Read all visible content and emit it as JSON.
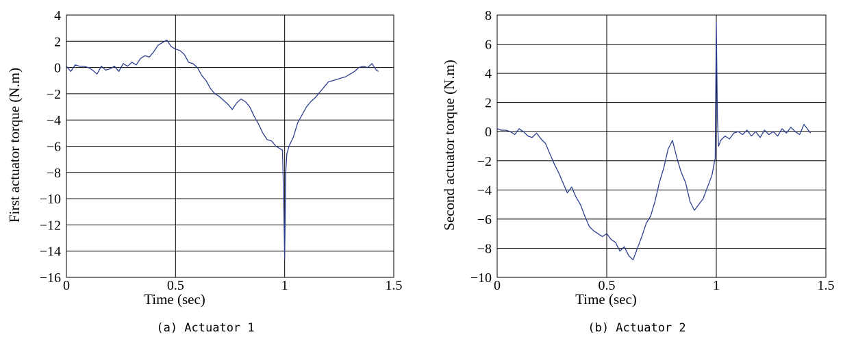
{
  "chart_data": [
    {
      "type": "line",
      "caption": "(a)  Actuator 1",
      "xlabel": "Time (sec)",
      "ylabel": "First actuator torque (N.m)",
      "xlim": [
        0,
        1.5
      ],
      "ylim": [
        -16,
        4
      ],
      "xticks": [
        0,
        0.5,
        1,
        1.5
      ],
      "xtick_labels": [
        "0",
        "0.5",
        "1",
        "1.5"
      ],
      "yticks": [
        -16,
        -14,
        -12,
        -10,
        -8,
        -6,
        -4,
        -2,
        0,
        2,
        4
      ],
      "ytick_labels": [
        "−16",
        "−14",
        "−12",
        "−10",
        "−8",
        "−6",
        "−4",
        "−2",
        "0",
        "2",
        "4"
      ],
      "grid": true,
      "line_color": "#2c3e8f",
      "series": [
        {
          "x": [
            0,
            0.02,
            0.04,
            0.06,
            0.08,
            0.1,
            0.12,
            0.14,
            0.16,
            0.18,
            0.2,
            0.22,
            0.24,
            0.26,
            0.28,
            0.3,
            0.32,
            0.34,
            0.36,
            0.38,
            0.4,
            0.42,
            0.44,
            0.46,
            0.48,
            0.5,
            0.52,
            0.54,
            0.56,
            0.58,
            0.6,
            0.62,
            0.64,
            0.66,
            0.68,
            0.7,
            0.72,
            0.74,
            0.76,
            0.78,
            0.8,
            0.82,
            0.84,
            0.86,
            0.88,
            0.9,
            0.92,
            0.94,
            0.96,
            0.98,
            0.99,
            0.995,
            1.0,
            1.005,
            1.01,
            1.02,
            1.04,
            1.06,
            1.08,
            1.1,
            1.12,
            1.14,
            1.16,
            1.18,
            1.2,
            1.22,
            1.24,
            1.26,
            1.28,
            1.3,
            1.32,
            1.34,
            1.36,
            1.38,
            1.4,
            1.42,
            1.43
          ],
          "y": [
            0.1,
            -0.3,
            0.2,
            0.1,
            0.1,
            0.0,
            -0.2,
            -0.5,
            0.1,
            -0.2,
            -0.1,
            0.1,
            -0.3,
            0.3,
            0.1,
            0.4,
            0.2,
            0.7,
            0.9,
            0.8,
            1.2,
            1.7,
            1.9,
            2.1,
            1.6,
            1.4,
            1.3,
            1.0,
            0.4,
            0.3,
            0.0,
            -0.6,
            -1.0,
            -1.6,
            -2.0,
            -2.2,
            -2.5,
            -2.8,
            -3.2,
            -2.7,
            -2.4,
            -2.6,
            -3.0,
            -3.7,
            -4.3,
            -5.0,
            -5.5,
            -5.6,
            -6.0,
            -6.2,
            -6.3,
            -9.5,
            -14.6,
            -8.0,
            -6.6,
            -6.0,
            -5.3,
            -4.2,
            -3.6,
            -3.0,
            -2.6,
            -2.3,
            -1.9,
            -1.5,
            -1.1,
            -1.0,
            -0.9,
            -0.8,
            -0.7,
            -0.5,
            -0.3,
            0.0,
            0.1,
            0.0,
            0.3,
            -0.2,
            -0.3
          ]
        }
      ]
    },
    {
      "type": "line",
      "caption": "(b)  Actuator 2",
      "xlabel": "Time (sec)",
      "ylabel": "Second actuator torque (N.m)",
      "xlim": [
        0,
        1.5
      ],
      "ylim": [
        -10,
        8
      ],
      "xticks": [
        0,
        0.5,
        1,
        1.5
      ],
      "xtick_labels": [
        "0",
        "0.5",
        "1",
        "1.5"
      ],
      "yticks": [
        -10,
        -8,
        -6,
        -4,
        -2,
        0,
        2,
        4,
        6,
        8
      ],
      "ytick_labels": [
        "−10",
        "−8",
        "−6",
        "−4",
        "−2",
        "0",
        "2",
        "4",
        "6",
        "8"
      ],
      "grid": true,
      "line_color": "#2c3e8f",
      "series": [
        {
          "x": [
            0,
            0.02,
            0.04,
            0.06,
            0.08,
            0.1,
            0.12,
            0.14,
            0.16,
            0.18,
            0.2,
            0.22,
            0.24,
            0.26,
            0.28,
            0.3,
            0.32,
            0.34,
            0.36,
            0.38,
            0.4,
            0.42,
            0.44,
            0.46,
            0.48,
            0.5,
            0.52,
            0.54,
            0.56,
            0.58,
            0.6,
            0.62,
            0.64,
            0.66,
            0.68,
            0.7,
            0.72,
            0.74,
            0.76,
            0.78,
            0.8,
            0.82,
            0.84,
            0.86,
            0.88,
            0.9,
            0.92,
            0.94,
            0.96,
            0.98,
            0.99,
            0.995,
            1.0,
            1.005,
            1.01,
            1.02,
            1.04,
            1.06,
            1.08,
            1.1,
            1.12,
            1.14,
            1.16,
            1.18,
            1.2,
            1.22,
            1.24,
            1.26,
            1.28,
            1.3,
            1.32,
            1.34,
            1.36,
            1.38,
            1.4,
            1.42,
            1.43
          ],
          "y": [
            0.2,
            0.1,
            0.1,
            0.0,
            -0.2,
            0.2,
            0.0,
            -0.3,
            -0.4,
            -0.1,
            -0.5,
            -0.8,
            -1.5,
            -2.2,
            -2.8,
            -3.5,
            -4.2,
            -3.8,
            -4.5,
            -5.0,
            -5.8,
            -6.5,
            -6.8,
            -7.0,
            -7.2,
            -7.0,
            -7.4,
            -7.6,
            -8.2,
            -7.9,
            -8.5,
            -8.8,
            -8.0,
            -7.2,
            -6.3,
            -5.8,
            -4.8,
            -3.5,
            -2.5,
            -1.2,
            -0.6,
            -1.8,
            -2.8,
            -3.5,
            -4.8,
            -5.4,
            -5.0,
            -4.6,
            -3.8,
            -3.0,
            -2.2,
            -1.8,
            7.5,
            1.0,
            -1.0,
            -0.6,
            -0.3,
            -0.5,
            -0.1,
            0.0,
            -0.2,
            0.1,
            -0.3,
            0.0,
            -0.4,
            0.1,
            -0.2,
            0.0,
            -0.3,
            0.2,
            -0.1,
            0.3,
            0.0,
            -0.2,
            0.5,
            0.1,
            -0.1
          ]
        }
      ]
    }
  ]
}
